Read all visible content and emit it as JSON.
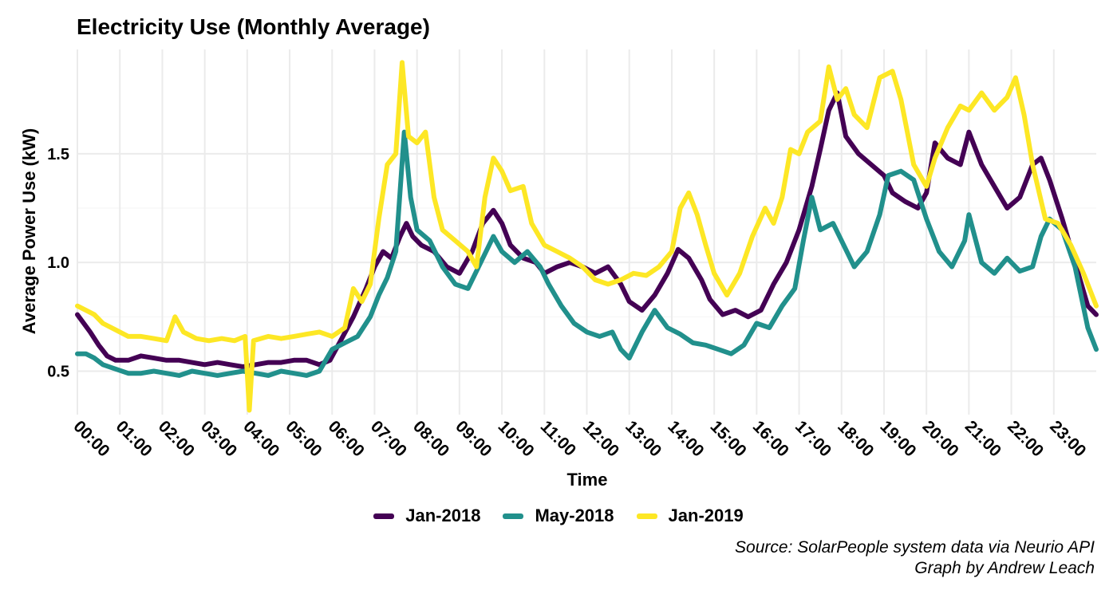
{
  "chart_data": {
    "type": "line",
    "title": "Electricity Use (Monthly Average)",
    "xlabel": "Time",
    "ylabel": "Average Power Use (kW)",
    "xlim": [
      0,
      24
    ],
    "ylim": [
      0.3,
      1.98
    ],
    "yticks": [
      0.5,
      1.0,
      1.5
    ],
    "ytick_labels": [
      "0.5",
      "1.0",
      "1.5"
    ],
    "xtick_labels": [
      "00:00",
      "01:00",
      "02:00",
      "03:00",
      "04:00",
      "05:00",
      "06:00",
      "07:00",
      "08:00",
      "09:00",
      "10:00",
      "11:00",
      "12:00",
      "13:00",
      "14:00",
      "15:00",
      "16:00",
      "17:00",
      "18:00",
      "19:00",
      "20:00",
      "21:00",
      "22:00",
      "23:00"
    ],
    "grid": true,
    "legend_position": "bottom",
    "series": [
      {
        "name": "Jan-2018",
        "color": "#440154",
        "points": [
          [
            0,
            0.76
          ],
          [
            0.15,
            0.72
          ],
          [
            0.3,
            0.68
          ],
          [
            0.5,
            0.62
          ],
          [
            0.7,
            0.57
          ],
          [
            0.9,
            0.55
          ],
          [
            1.2,
            0.55
          ],
          [
            1.5,
            0.57
          ],
          [
            1.8,
            0.56
          ],
          [
            2.1,
            0.55
          ],
          [
            2.4,
            0.55
          ],
          [
            2.7,
            0.54
          ],
          [
            3.0,
            0.53
          ],
          [
            3.3,
            0.54
          ],
          [
            3.6,
            0.53
          ],
          [
            3.9,
            0.52
          ],
          [
            4.2,
            0.53
          ],
          [
            4.5,
            0.54
          ],
          [
            4.8,
            0.54
          ],
          [
            5.1,
            0.55
          ],
          [
            5.4,
            0.55
          ],
          [
            5.7,
            0.53
          ],
          [
            5.95,
            0.55
          ],
          [
            6.2,
            0.64
          ],
          [
            6.5,
            0.75
          ],
          [
            6.8,
            0.88
          ],
          [
            7.0,
            0.98
          ],
          [
            7.2,
            1.05
          ],
          [
            7.4,
            1.02
          ],
          [
            7.6,
            1.12
          ],
          [
            7.75,
            1.18
          ],
          [
            7.9,
            1.12
          ],
          [
            8.1,
            1.08
          ],
          [
            8.4,
            1.05
          ],
          [
            8.7,
            0.98
          ],
          [
            9.0,
            0.95
          ],
          [
            9.3,
            1.05
          ],
          [
            9.55,
            1.18
          ],
          [
            9.8,
            1.24
          ],
          [
            10.0,
            1.18
          ],
          [
            10.2,
            1.08
          ],
          [
            10.5,
            1.02
          ],
          [
            10.8,
            1.0
          ],
          [
            11.0,
            0.95
          ],
          [
            11.3,
            0.98
          ],
          [
            11.6,
            1.0
          ],
          [
            11.9,
            0.98
          ],
          [
            12.2,
            0.95
          ],
          [
            12.5,
            0.98
          ],
          [
            12.8,
            0.9
          ],
          [
            13.0,
            0.82
          ],
          [
            13.3,
            0.78
          ],
          [
            13.6,
            0.85
          ],
          [
            13.9,
            0.95
          ],
          [
            14.15,
            1.06
          ],
          [
            14.4,
            1.02
          ],
          [
            14.7,
            0.92
          ],
          [
            14.9,
            0.83
          ],
          [
            15.2,
            0.76
          ],
          [
            15.5,
            0.78
          ],
          [
            15.8,
            0.75
          ],
          [
            16.1,
            0.78
          ],
          [
            16.4,
            0.9
          ],
          [
            16.7,
            1.0
          ],
          [
            17.0,
            1.15
          ],
          [
            17.3,
            1.35
          ],
          [
            17.5,
            1.52
          ],
          [
            17.7,
            1.7
          ],
          [
            17.9,
            1.78
          ],
          [
            18.1,
            1.58
          ],
          [
            18.4,
            1.5
          ],
          [
            18.7,
            1.45
          ],
          [
            19.0,
            1.4
          ],
          [
            19.2,
            1.32
          ],
          [
            19.5,
            1.28
          ],
          [
            19.8,
            1.25
          ],
          [
            20.0,
            1.32
          ],
          [
            20.2,
            1.55
          ],
          [
            20.5,
            1.48
          ],
          [
            20.8,
            1.45
          ],
          [
            21.0,
            1.6
          ],
          [
            21.3,
            1.45
          ],
          [
            21.6,
            1.35
          ],
          [
            21.9,
            1.25
          ],
          [
            22.2,
            1.3
          ],
          [
            22.5,
            1.45
          ],
          [
            22.7,
            1.48
          ],
          [
            22.9,
            1.38
          ],
          [
            23.2,
            1.2
          ],
          [
            23.5,
            1.0
          ],
          [
            23.8,
            0.8
          ],
          [
            24,
            0.76
          ]
        ]
      },
      {
        "name": "May-2018",
        "color": "#21908c",
        "points": [
          [
            0,
            0.58
          ],
          [
            0.2,
            0.58
          ],
          [
            0.4,
            0.56
          ],
          [
            0.6,
            0.53
          ],
          [
            0.9,
            0.51
          ],
          [
            1.2,
            0.49
          ],
          [
            1.5,
            0.49
          ],
          [
            1.8,
            0.5
          ],
          [
            2.1,
            0.49
          ],
          [
            2.4,
            0.48
          ],
          [
            2.7,
            0.5
          ],
          [
            3.0,
            0.49
          ],
          [
            3.3,
            0.48
          ],
          [
            3.6,
            0.49
          ],
          [
            3.9,
            0.5
          ],
          [
            4.2,
            0.49
          ],
          [
            4.5,
            0.48
          ],
          [
            4.8,
            0.5
          ],
          [
            5.1,
            0.49
          ],
          [
            5.4,
            0.48
          ],
          [
            5.7,
            0.5
          ],
          [
            6.0,
            0.6
          ],
          [
            6.3,
            0.63
          ],
          [
            6.6,
            0.66
          ],
          [
            6.9,
            0.75
          ],
          [
            7.1,
            0.85
          ],
          [
            7.3,
            0.93
          ],
          [
            7.5,
            1.05
          ],
          [
            7.7,
            1.6
          ],
          [
            7.85,
            1.3
          ],
          [
            8.0,
            1.15
          ],
          [
            8.3,
            1.1
          ],
          [
            8.6,
            0.98
          ],
          [
            8.9,
            0.9
          ],
          [
            9.2,
            0.88
          ],
          [
            9.5,
            1.0
          ],
          [
            9.8,
            1.12
          ],
          [
            10.0,
            1.05
          ],
          [
            10.3,
            1.0
          ],
          [
            10.6,
            1.05
          ],
          [
            10.9,
            0.98
          ],
          [
            11.1,
            0.9
          ],
          [
            11.4,
            0.8
          ],
          [
            11.7,
            0.72
          ],
          [
            12.0,
            0.68
          ],
          [
            12.3,
            0.66
          ],
          [
            12.6,
            0.68
          ],
          [
            12.8,
            0.6
          ],
          [
            13.0,
            0.56
          ],
          [
            13.3,
            0.68
          ],
          [
            13.6,
            0.78
          ],
          [
            13.9,
            0.7
          ],
          [
            14.2,
            0.67
          ],
          [
            14.5,
            0.63
          ],
          [
            14.8,
            0.62
          ],
          [
            15.1,
            0.6
          ],
          [
            15.4,
            0.58
          ],
          [
            15.7,
            0.62
          ],
          [
            16.0,
            0.72
          ],
          [
            16.3,
            0.7
          ],
          [
            16.6,
            0.8
          ],
          [
            16.9,
            0.88
          ],
          [
            17.1,
            1.1
          ],
          [
            17.3,
            1.3
          ],
          [
            17.5,
            1.15
          ],
          [
            17.8,
            1.18
          ],
          [
            18.0,
            1.1
          ],
          [
            18.3,
            0.98
          ],
          [
            18.6,
            1.05
          ],
          [
            18.9,
            1.22
          ],
          [
            19.1,
            1.4
          ],
          [
            19.4,
            1.42
          ],
          [
            19.7,
            1.38
          ],
          [
            20.0,
            1.2
          ],
          [
            20.3,
            1.05
          ],
          [
            20.6,
            0.98
          ],
          [
            20.9,
            1.1
          ],
          [
            21.0,
            1.22
          ],
          [
            21.3,
            1.0
          ],
          [
            21.6,
            0.95
          ],
          [
            21.9,
            1.02
          ],
          [
            22.2,
            0.96
          ],
          [
            22.5,
            0.98
          ],
          [
            22.7,
            1.12
          ],
          [
            22.9,
            1.2
          ],
          [
            23.2,
            1.15
          ],
          [
            23.5,
            0.98
          ],
          [
            23.8,
            0.7
          ],
          [
            24,
            0.6
          ]
        ]
      },
      {
        "name": "Jan-2019",
        "color": "#fde725",
        "points": [
          [
            0,
            0.8
          ],
          [
            0.2,
            0.78
          ],
          [
            0.4,
            0.76
          ],
          [
            0.6,
            0.72
          ],
          [
            0.9,
            0.69
          ],
          [
            1.2,
            0.66
          ],
          [
            1.5,
            0.66
          ],
          [
            1.8,
            0.65
          ],
          [
            2.1,
            0.64
          ],
          [
            2.3,
            0.75
          ],
          [
            2.5,
            0.68
          ],
          [
            2.8,
            0.65
          ],
          [
            3.1,
            0.64
          ],
          [
            3.4,
            0.65
          ],
          [
            3.7,
            0.64
          ],
          [
            3.95,
            0.66
          ],
          [
            4.05,
            0.32
          ],
          [
            4.15,
            0.64
          ],
          [
            4.5,
            0.66
          ],
          [
            4.8,
            0.65
          ],
          [
            5.1,
            0.66
          ],
          [
            5.4,
            0.67
          ],
          [
            5.7,
            0.68
          ],
          [
            6.0,
            0.66
          ],
          [
            6.3,
            0.7
          ],
          [
            6.5,
            0.88
          ],
          [
            6.7,
            0.82
          ],
          [
            6.9,
            0.9
          ],
          [
            7.1,
            1.2
          ],
          [
            7.3,
            1.45
          ],
          [
            7.5,
            1.5
          ],
          [
            7.65,
            1.92
          ],
          [
            7.8,
            1.58
          ],
          [
            8.0,
            1.55
          ],
          [
            8.2,
            1.6
          ],
          [
            8.4,
            1.3
          ],
          [
            8.6,
            1.15
          ],
          [
            8.9,
            1.1
          ],
          [
            9.2,
            1.05
          ],
          [
            9.4,
            0.98
          ],
          [
            9.6,
            1.3
          ],
          [
            9.8,
            1.48
          ],
          [
            10.0,
            1.42
          ],
          [
            10.2,
            1.33
          ],
          [
            10.5,
            1.35
          ],
          [
            10.7,
            1.18
          ],
          [
            11.0,
            1.08
          ],
          [
            11.3,
            1.05
          ],
          [
            11.6,
            1.02
          ],
          [
            11.9,
            0.98
          ],
          [
            12.2,
            0.92
          ],
          [
            12.5,
            0.9
          ],
          [
            12.8,
            0.92
          ],
          [
            13.1,
            0.95
          ],
          [
            13.4,
            0.94
          ],
          [
            13.7,
            0.98
          ],
          [
            14.0,
            1.05
          ],
          [
            14.2,
            1.25
          ],
          [
            14.4,
            1.32
          ],
          [
            14.6,
            1.22
          ],
          [
            14.8,
            1.08
          ],
          [
            15.0,
            0.95
          ],
          [
            15.3,
            0.85
          ],
          [
            15.6,
            0.95
          ],
          [
            15.9,
            1.12
          ],
          [
            16.2,
            1.25
          ],
          [
            16.4,
            1.18
          ],
          [
            16.6,
            1.3
          ],
          [
            16.8,
            1.52
          ],
          [
            17.0,
            1.5
          ],
          [
            17.2,
            1.6
          ],
          [
            17.5,
            1.65
          ],
          [
            17.7,
            1.9
          ],
          [
            17.9,
            1.75
          ],
          [
            18.1,
            1.8
          ],
          [
            18.3,
            1.68
          ],
          [
            18.6,
            1.62
          ],
          [
            18.9,
            1.85
          ],
          [
            19.2,
            1.88
          ],
          [
            19.4,
            1.75
          ],
          [
            19.7,
            1.45
          ],
          [
            20.0,
            1.35
          ],
          [
            20.2,
            1.48
          ],
          [
            20.5,
            1.62
          ],
          [
            20.8,
            1.72
          ],
          [
            21.0,
            1.7
          ],
          [
            21.3,
            1.78
          ],
          [
            21.6,
            1.7
          ],
          [
            21.9,
            1.76
          ],
          [
            22.1,
            1.85
          ],
          [
            22.3,
            1.68
          ],
          [
            22.5,
            1.45
          ],
          [
            22.8,
            1.2
          ],
          [
            23.1,
            1.18
          ],
          [
            23.4,
            1.08
          ],
          [
            23.7,
            0.95
          ],
          [
            24,
            0.8
          ]
        ]
      }
    ],
    "captions": [
      "Source: SolarPeople system data via Neurio API",
      "Graph by Andrew Leach"
    ]
  }
}
